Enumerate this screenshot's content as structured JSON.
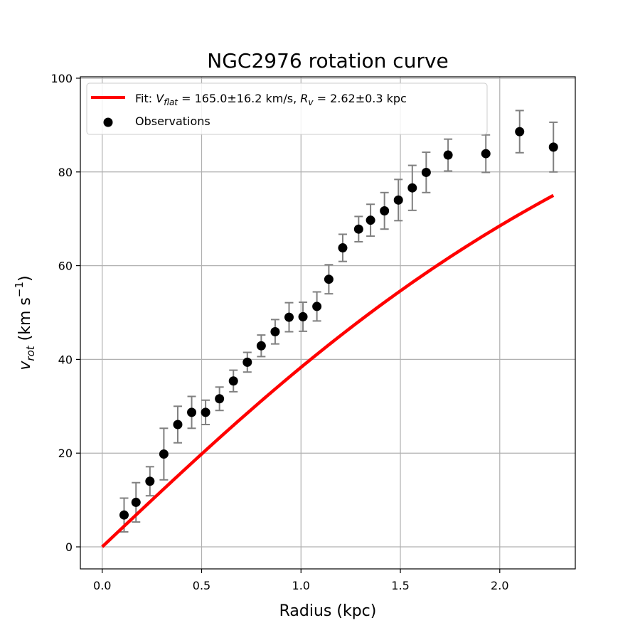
{
  "chart_data": {
    "type": "scatter",
    "title": "NGC2976 rotation curve",
    "xlabel": "Radius (kpc)",
    "ylabel": "v_rot (km s^-1)",
    "xlim": [
      -0.11,
      2.38
    ],
    "ylim": [
      -4.7,
      100.3
    ],
    "x_ticks": [
      0.0,
      0.5,
      1.0,
      1.5,
      2.0
    ],
    "x_tick_labels": [
      "0.0",
      "0.5",
      "1.0",
      "1.5",
      "2.0"
    ],
    "y_ticks": [
      0,
      20,
      40,
      60,
      80,
      100
    ],
    "y_tick_labels": [
      "0",
      "20",
      "40",
      "60",
      "80",
      "100"
    ],
    "grid": true,
    "legend_position": "top-left",
    "series": [
      {
        "name": "Fit: V_flat = 165.0±16.2 km/s, R_v = 2.62±0.3 kpc",
        "kind": "line",
        "color": "#ff0000",
        "model": "arctan",
        "params": {
          "V_flat": 165.0,
          "R_v": 2.62
        },
        "x_range": [
          0.0,
          2.27
        ]
      },
      {
        "name": "Observations",
        "kind": "errorbar-scatter",
        "color": "#000000",
        "error_color": "#808080",
        "points": [
          {
            "x": 0.11,
            "y": 6.8,
            "err": 3.6
          },
          {
            "x": 0.17,
            "y": 9.5,
            "err": 4.2
          },
          {
            "x": 0.24,
            "y": 14.0,
            "err": 3.1
          },
          {
            "x": 0.31,
            "y": 19.8,
            "err": 5.5
          },
          {
            "x": 0.38,
            "y": 26.1,
            "err": 3.9
          },
          {
            "x": 0.45,
            "y": 28.7,
            "err": 3.4
          },
          {
            "x": 0.52,
            "y": 28.7,
            "err": 2.6
          },
          {
            "x": 0.59,
            "y": 31.6,
            "err": 2.5
          },
          {
            "x": 0.66,
            "y": 35.4,
            "err": 2.3
          },
          {
            "x": 0.73,
            "y": 39.4,
            "err": 2.1
          },
          {
            "x": 0.8,
            "y": 42.9,
            "err": 2.3
          },
          {
            "x": 0.87,
            "y": 45.9,
            "err": 2.6
          },
          {
            "x": 0.94,
            "y": 49.0,
            "err": 3.1
          },
          {
            "x": 1.01,
            "y": 49.1,
            "err": 3.1
          },
          {
            "x": 1.08,
            "y": 51.3,
            "err": 3.1
          },
          {
            "x": 1.14,
            "y": 57.1,
            "err": 3.1
          },
          {
            "x": 1.21,
            "y": 63.8,
            "err": 2.9
          },
          {
            "x": 1.29,
            "y": 67.8,
            "err": 2.7
          },
          {
            "x": 1.35,
            "y": 69.7,
            "err": 3.4
          },
          {
            "x": 1.42,
            "y": 71.7,
            "err": 3.9
          },
          {
            "x": 1.49,
            "y": 74.0,
            "err": 4.4
          },
          {
            "x": 1.56,
            "y": 76.6,
            "err": 4.8
          },
          {
            "x": 1.63,
            "y": 79.9,
            "err": 4.3
          },
          {
            "x": 1.74,
            "y": 83.6,
            "err": 3.4
          },
          {
            "x": 1.93,
            "y": 83.9,
            "err": 4.0
          },
          {
            "x": 2.1,
            "y": 88.6,
            "err": 4.5
          },
          {
            "x": 2.27,
            "y": 85.3,
            "err": 5.3
          }
        ]
      }
    ]
  },
  "legend": {
    "fit_prefix": "Fit: ",
    "fit_vflat_symbol": "V",
    "fit_vflat_sub": "flat",
    "fit_vflat_rest": " = 165.0±16.2 km/s, ",
    "fit_rv_symbol": "R",
    "fit_rv_sub": "v",
    "fit_rv_rest": " = 2.62±0.3 kpc",
    "observations": "Observations"
  },
  "ylabel_parts": {
    "symbol": "v",
    "sub": "rot",
    "rest": " (km s",
    "sup": "−1",
    "close": ")"
  }
}
